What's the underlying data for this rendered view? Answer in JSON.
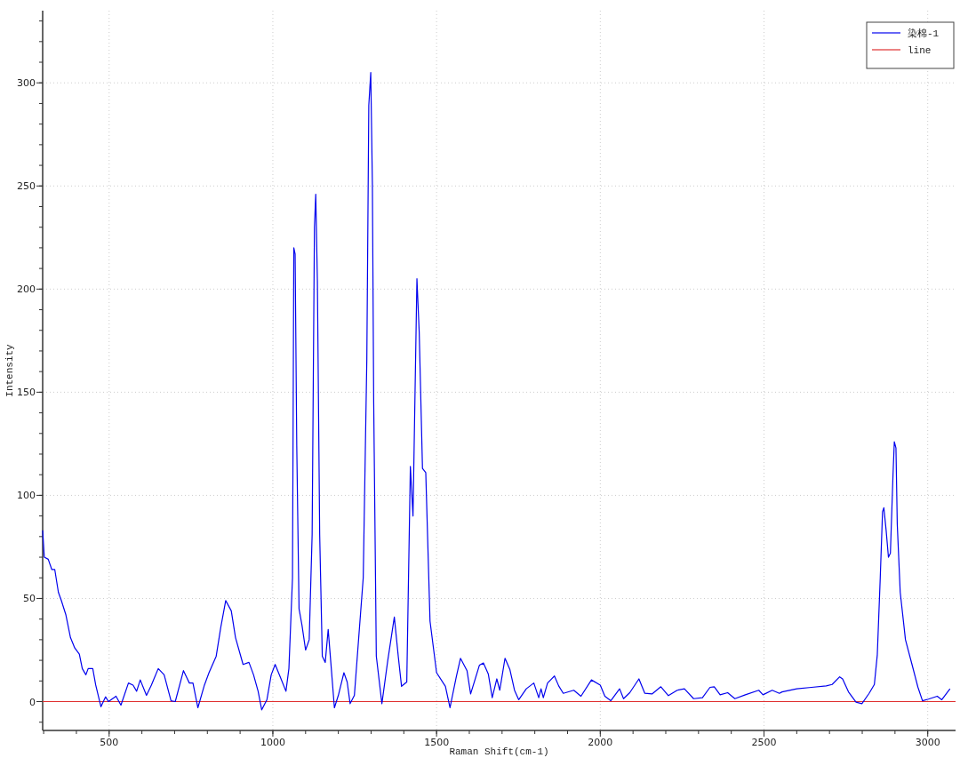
{
  "chart_data": {
    "type": "line",
    "xlabel": "Raman Shift(cm-1)",
    "ylabel": "Intensity",
    "xlim": [
      297,
      3085
    ],
    "ylim": [
      -14,
      335
    ],
    "xticks": [
      500,
      1000,
      1500,
      2000,
      2500,
      3000
    ],
    "yticks": [
      0,
      50,
      100,
      150,
      200,
      250,
      300
    ],
    "grid": true,
    "legend": "top right",
    "series": [
      {
        "name": "染棉-1",
        "color": "#0000ee",
        "x": [
          297,
          302,
          314,
          325,
          334,
          345,
          354,
          368,
          382,
          395,
          409,
          418,
          429,
          436,
          450,
          459,
          475,
          489,
          498,
          521,
          536,
          559,
          573,
          584,
          595,
          614,
          629,
          650,
          668,
          689,
          702,
          727,
          745,
          756,
          771,
          791,
          805,
          827,
          841,
          856,
          873,
          886,
          909,
          927,
          941,
          955,
          966,
          982,
          995,
          1007,
          1025,
          1040,
          1049,
          1060,
          1064,
          1068,
          1073,
          1080,
          1089,
          1100,
          1111,
          1120,
          1127,
          1131,
          1136,
          1143,
          1151,
          1160,
          1169,
          1177,
          1188,
          1200,
          1217,
          1227,
          1236,
          1249,
          1276,
          1287,
          1293,
          1299,
          1304,
          1308,
          1316,
          1333,
          1351,
          1371,
          1383,
          1393,
          1409,
          1420,
          1428,
          1440,
          1447,
          1457,
          1467,
          1480,
          1500,
          1527,
          1541,
          1561,
          1573,
          1593,
          1604,
          1631,
          1643,
          1658,
          1670,
          1684,
          1693,
          1709,
          1724,
          1738,
          1751,
          1774,
          1797,
          1812,
          1819,
          1826,
          1839,
          1860,
          1873,
          1887,
          1919,
          1941,
          1973,
          2000,
          2014,
          2032,
          2059,
          2071,
          2090,
          2118,
          2136,
          2158,
          2185,
          2208,
          2235,
          2257,
          2285,
          2312,
          2335,
          2348,
          2366,
          2389,
          2411,
          2443,
          2484,
          2497,
          2525,
          2547,
          2555,
          2600,
          2645,
          2690,
          2708,
          2731,
          2740,
          2758,
          2781,
          2799,
          2821,
          2837,
          2846,
          2855,
          2862,
          2866,
          2873,
          2880,
          2886,
          2894,
          2898,
          2903,
          2907,
          2916,
          2932,
          2952,
          2970,
          2984,
          3002,
          3029,
          3043,
          3068
        ],
        "values": [
          83,
          70,
          69,
          64,
          64,
          53,
          49,
          42,
          31,
          26,
          23,
          16,
          13,
          16,
          16,
          8,
          -2.5,
          2.3,
          0,
          2.6,
          -1.7,
          9,
          8,
          5,
          10.5,
          3,
          8,
          16,
          13,
          0.4,
          0,
          15,
          9,
          9,
          -3,
          8,
          14,
          22,
          36,
          49,
          44,
          31,
          18,
          19,
          13,
          5,
          -4,
          1,
          13,
          18,
          11,
          5,
          16,
          60,
          220,
          217,
          124,
          45,
          37,
          25,
          30,
          81,
          230,
          246,
          204,
          81,
          22,
          19,
          35,
          19,
          -3,
          3,
          14,
          9.5,
          -1,
          3,
          60,
          166,
          289,
          305,
          251,
          145,
          22,
          -1,
          20,
          41,
          22,
          7.4,
          9.5,
          114,
          90,
          205,
          179,
          113,
          111,
          39,
          14,
          7.4,
          -3,
          12.6,
          21,
          15,
          3.7,
          17.7,
          18.7,
          13.4,
          1.9,
          11,
          5.5,
          21,
          15.5,
          5.5,
          0.9,
          6.2,
          9,
          1.9,
          6.2,
          1.9,
          9,
          12.4,
          7.6,
          4,
          5.5,
          2.6,
          10.5,
          8,
          2.6,
          0.4,
          6.2,
          1.4,
          4.3,
          11,
          4,
          3.7,
          7.2,
          2.9,
          5.5,
          6.2,
          1.4,
          1.9,
          6.9,
          7.2,
          3.3,
          4.3,
          1.4,
          3.3,
          5.5,
          3.3,
          5.5,
          4,
          4.7,
          6.2,
          6.9,
          7.6,
          8.3,
          12,
          11,
          4.7,
          -0.3,
          -1,
          4,
          8.3,
          22.7,
          60,
          92,
          94,
          83,
          70,
          72,
          110,
          126,
          123,
          86,
          53,
          30,
          18,
          7,
          0.4,
          1.2,
          2.6,
          0.9,
          6.2
        ]
      },
      {
        "name": "line",
        "color": "#e03030",
        "x": [
          297,
          3085
        ],
        "values": [
          0,
          0
        ]
      }
    ]
  }
}
